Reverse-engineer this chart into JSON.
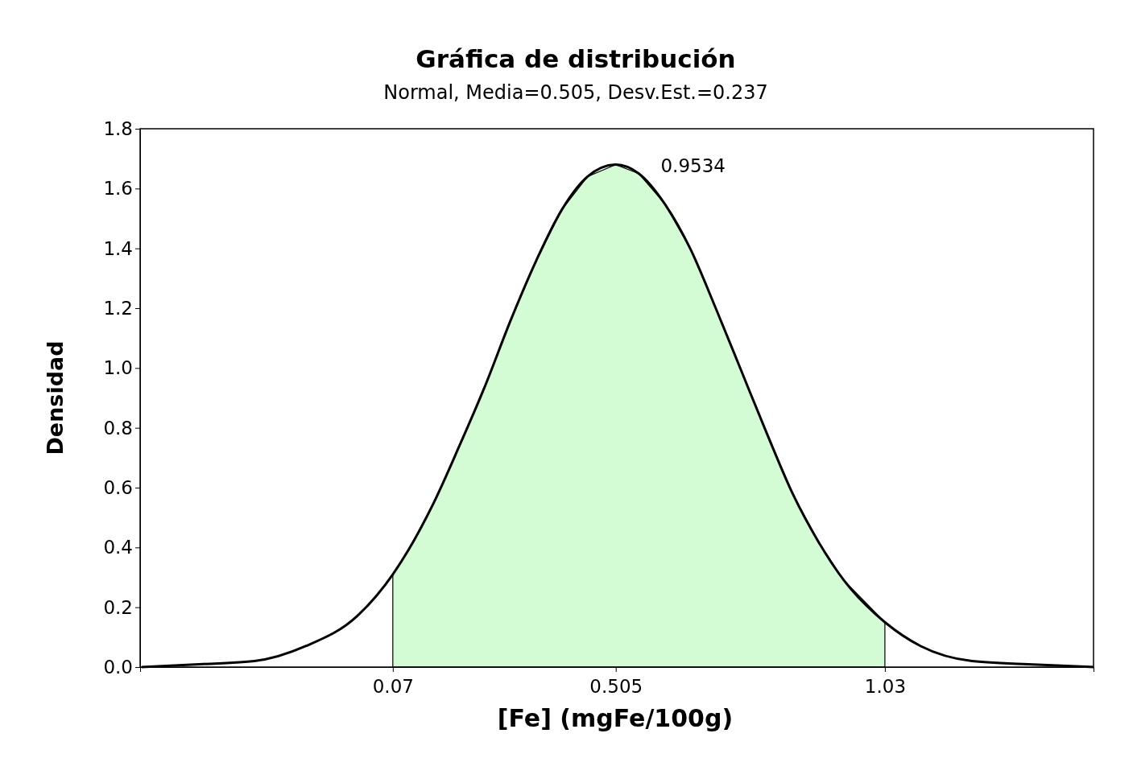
{
  "chart_data": {
    "type": "line",
    "title": "Gráfica de distribución",
    "subtitle": "Normal, Media=0.505, Desv.Est.=0.237",
    "xlabel": "[Fe] (mgFe/100g)",
    "ylabel": "Densidad",
    "xlim": [
      -0.423,
      1.437
    ],
    "xticks": [
      0.07,
      0.505,
      1.03
    ],
    "ylim": [
      0,
      1.8
    ],
    "yticks": [
      {
        "value": 0,
        "label": "0.0"
      },
      0.2,
      0.4,
      0.6,
      0.8,
      {
        "value": 1,
        "label": "1.0"
      },
      1.2,
      1.4,
      1.6,
      1.8
    ],
    "grid": false,
    "marker": "none",
    "line_style": "solid",
    "series": [
      {
        "type": "area",
        "color": "#d4fcd4",
        "x": [
          0.07,
          0.1,
          0.15,
          0.2,
          0.25,
          0.3,
          0.35,
          0.4,
          0.45,
          0.505,
          0.55,
          0.6,
          0.65,
          0.7,
          0.75,
          0.8,
          0.85,
          0.9,
          0.95,
          1.03
        ],
        "values": [
          0.31,
          0.39,
          0.55,
          0.74,
          0.94,
          1.16,
          1.36,
          1.53,
          1.64,
          1.68,
          1.65,
          1.55,
          1.4,
          1.2,
          0.99,
          0.78,
          0.58,
          0.42,
          0.29,
          0.15
        ]
      },
      {
        "color": "#000000",
        "x": [
          -0.42,
          -0.3,
          -0.2,
          -0.1,
          0,
          0.07,
          0.1,
          0.15,
          0.2,
          0.25,
          0.3,
          0.35,
          0.4,
          0.45,
          0.505,
          0.55,
          0.6,
          0.65,
          0.7,
          0.75,
          0.8,
          0.85,
          0.9,
          0.95,
          1.03,
          1.1,
          1.2,
          1.3,
          1.437
        ],
        "values": [
          0.0,
          0.01,
          0.02,
          0.07,
          0.17,
          0.31,
          0.39,
          0.55,
          0.74,
          0.94,
          1.16,
          1.36,
          1.53,
          1.64,
          1.68,
          1.65,
          1.55,
          1.4,
          1.2,
          0.99,
          0.78,
          0.58,
          0.42,
          0.29,
          0.15,
          0.07,
          0.02,
          0.01,
          0.0
        ]
      }
    ],
    "annotations": [
      "0.9534"
    ]
  }
}
